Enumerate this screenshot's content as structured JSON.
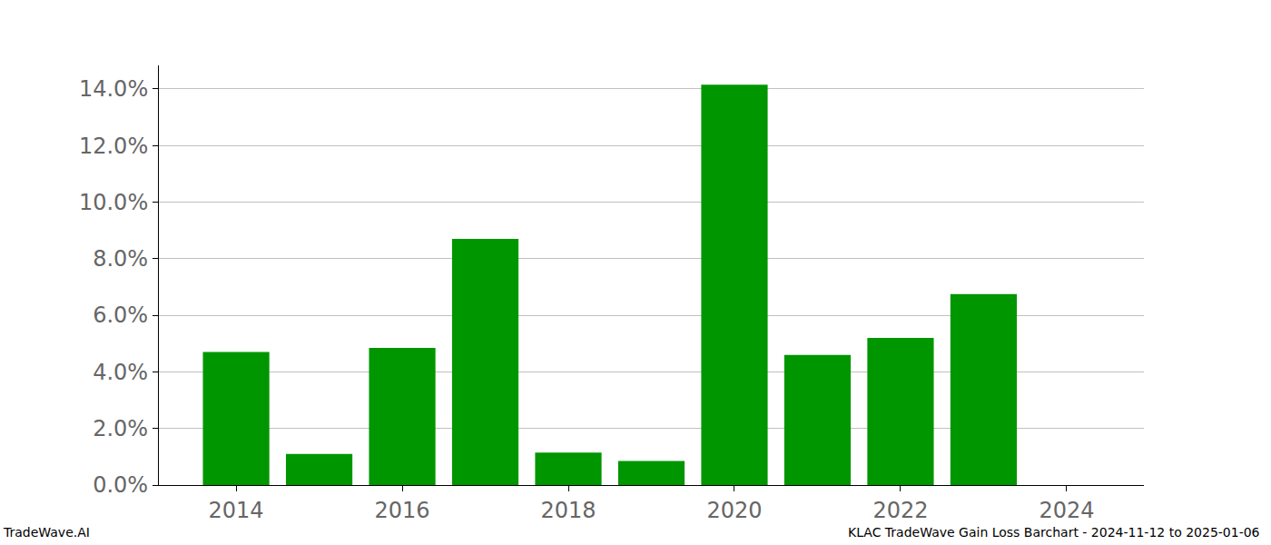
{
  "chart_data": {
    "type": "bar",
    "x": [
      2014,
      2015,
      2016,
      2017,
      2018,
      2019,
      2020,
      2021,
      2022,
      2023,
      2024
    ],
    "values": [
      4.7,
      1.1,
      4.85,
      8.7,
      1.15,
      0.85,
      14.15,
      4.6,
      5.2,
      6.75,
      null
    ],
    "color": "#009600",
    "xlim": [
      2013.07,
      2024.93
    ],
    "xticks": [
      2014,
      2016,
      2018,
      2020,
      2022,
      2024
    ],
    "ylim": [
      0,
      14.83
    ],
    "yticks": [
      {
        "value": 0,
        "label": "0.0%"
      },
      {
        "value": 2,
        "label": "2.0%"
      },
      {
        "value": 4,
        "label": "4.0%"
      },
      {
        "value": 6,
        "label": "6.0%"
      },
      {
        "value": 8,
        "label": "8.0%"
      },
      {
        "value": 10,
        "label": "10.0%"
      },
      {
        "value": 12,
        "label": "12.0%"
      },
      {
        "value": 14,
        "label": "14.0%"
      }
    ],
    "grid": true,
    "annotations": [
      "TradeWave.AI",
      "KLAC TradeWave Gain Loss Barchart - 2024-11-12 to 2025-01-06"
    ]
  }
}
